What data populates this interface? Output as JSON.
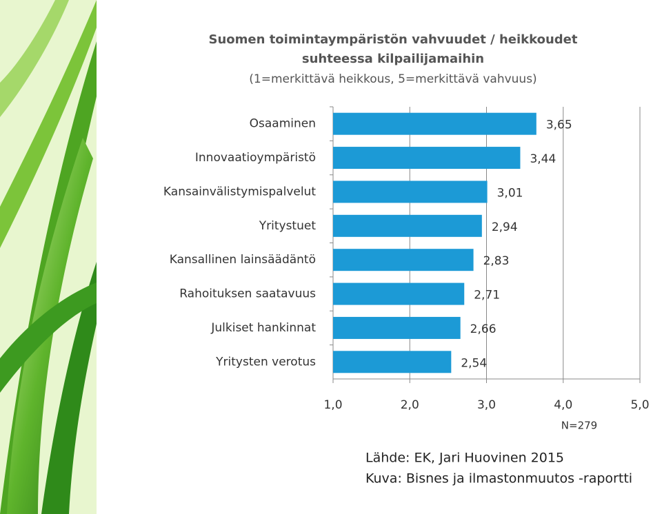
{
  "chart_data": {
    "type": "hbar",
    "title": [
      "Suomen toimintaympäristön vahvuudet / heikkoudet",
      "suhteessa kilpailijamaihin"
    ],
    "subtitle": "(1=merkittävä heikkous, 5=merkittävä vahvuus)",
    "categories": [
      "Osaaminen",
      "Innovaatioympäristö",
      "Kansainvälistymispalvelut",
      "Yritystuet",
      "Kansallinen lainsäädäntö",
      "Rahoituksen saatavuus",
      "Julkiset hankinnat",
      "Yritysten verotus"
    ],
    "values": [
      3.65,
      3.44,
      3.01,
      2.94,
      2.83,
      2.71,
      2.66,
      2.54
    ],
    "value_labels": [
      "3,65",
      "3,44",
      "3,01",
      "2,94",
      "2,83",
      "2,71",
      "2,66",
      "2,54"
    ],
    "color": "#1c9ad6",
    "xlim": [
      1,
      5
    ],
    "xticks": [
      {
        "value": 1,
        "label": "1,0"
      },
      {
        "value": 2,
        "label": "2,0"
      },
      {
        "value": 3,
        "label": "3,0"
      },
      {
        "value": 4,
        "label": "4,0"
      },
      {
        "value": 5,
        "label": "5,0"
      }
    ],
    "grid": true,
    "annotation": "N=279"
  },
  "source": [
    "Lähde: EK, Jari Huovinen 2015",
    "Kuva: Bisnes ja ilmastonmuutos -raportti"
  ]
}
